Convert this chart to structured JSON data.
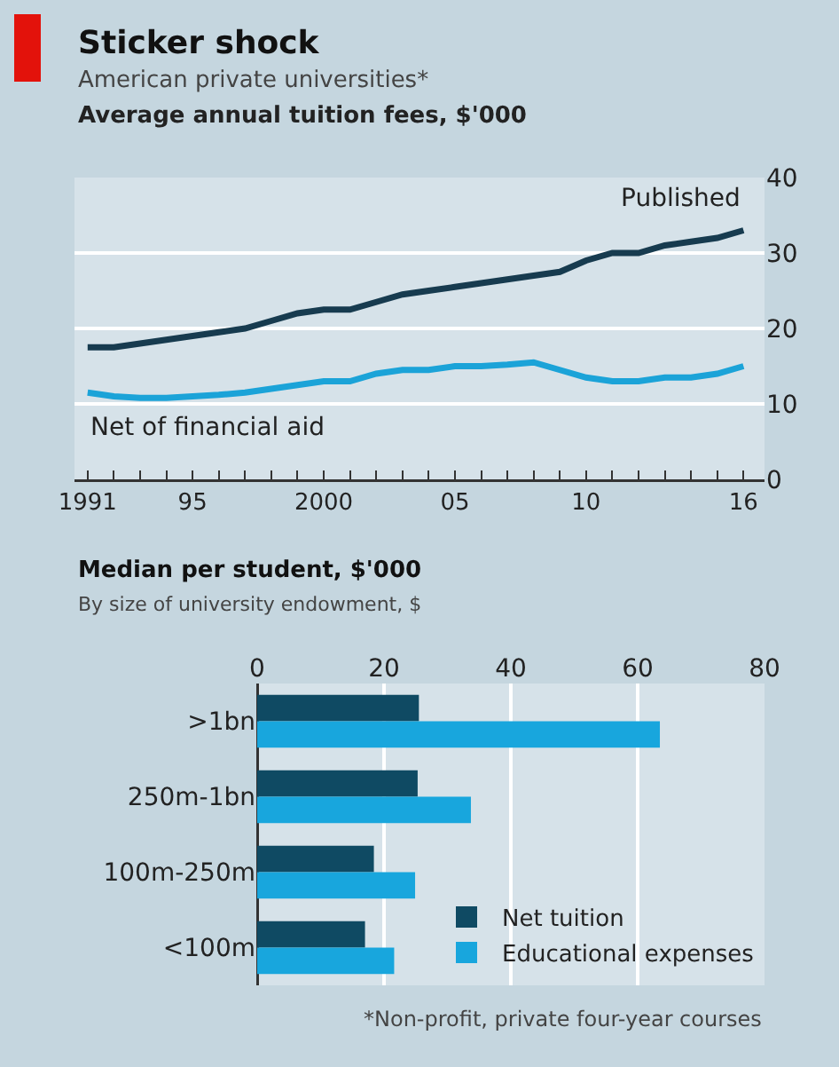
{
  "chart_data": [
    {
      "type": "line",
      "title": "Sticker shock",
      "subtitle": "American private universities*",
      "ylabel": "Average annual tuition fees, $'000",
      "x": [
        1991,
        1992,
        1993,
        1994,
        1995,
        1996,
        1997,
        1998,
        1999,
        2000,
        2001,
        2002,
        2003,
        2004,
        2005,
        2006,
        2007,
        2008,
        2009,
        2010,
        2011,
        2012,
        2013,
        2014,
        2015,
        2016
      ],
      "series": [
        {
          "name": "Published",
          "color": "#173b4f",
          "values": [
            17.5,
            17.5,
            18,
            18.5,
            19,
            19.5,
            20,
            21,
            22,
            22.5,
            22.5,
            23.5,
            24.5,
            25,
            25.5,
            26,
            26.5,
            27,
            27.5,
            29,
            30,
            30,
            31,
            31.5,
            32,
            33
          ]
        },
        {
          "name": "Net of financial aid",
          "color": "#1ba3d8",
          "values": [
            11.5,
            11,
            10.8,
            10.8,
            11,
            11.2,
            11.5,
            12,
            12.5,
            13,
            13,
            14,
            14.5,
            14.5,
            15,
            15,
            15.2,
            15.5,
            14.5,
            13.5,
            13,
            13,
            13.5,
            13.5,
            14,
            15
          ]
        }
      ],
      "xlim": [
        1990.5,
        2016.8
      ],
      "xticks": [
        {
          "value": 1991,
          "label": "1991"
        },
        {
          "value": 1992,
          "label": null
        },
        {
          "value": 1993,
          "label": null
        },
        {
          "value": 1994,
          "label": null
        },
        {
          "value": 1995,
          "label": "95"
        },
        {
          "value": 1996,
          "label": null
        },
        {
          "value": 1997,
          "label": null
        },
        {
          "value": 1998,
          "label": null
        },
        {
          "value": 1999,
          "label": null
        },
        {
          "value": 2000,
          "label": "2000"
        },
        {
          "value": 2001,
          "label": null
        },
        {
          "value": 2002,
          "label": null
        },
        {
          "value": 2003,
          "label": null
        },
        {
          "value": 2004,
          "label": null
        },
        {
          "value": 2005,
          "label": "05"
        },
        {
          "value": 2006,
          "label": null
        },
        {
          "value": 2007,
          "label": null
        },
        {
          "value": 2008,
          "label": null
        },
        {
          "value": 2009,
          "label": null
        },
        {
          "value": 2010,
          "label": "10"
        },
        {
          "value": 2011,
          "label": null
        },
        {
          "value": 2012,
          "label": null
        },
        {
          "value": 2013,
          "label": null
        },
        {
          "value": 2014,
          "label": null
        },
        {
          "value": 2015,
          "label": null
        },
        {
          "value": 2016,
          "label": "16"
        }
      ],
      "ylim": [
        0,
        40
      ],
      "yticks": [
        0,
        10,
        20,
        30,
        40
      ],
      "grid": "y",
      "legend": false
    },
    {
      "type": "bar",
      "orientation": "horizontal",
      "title": "Median per student, $'000",
      "subtitle": "By size of university endowment, $",
      "categories": [
        ">1bn",
        "250m-1bn",
        "100m-250m",
        "<100m"
      ],
      "series": [
        {
          "name": "Net tuition",
          "color": "#0f4a63",
          "values": [
            25.5,
            25.3,
            18.4,
            17
          ]
        },
        {
          "name": "Educational expenses",
          "color": "#18a6dd",
          "values": [
            63.5,
            33.7,
            24.9,
            21.6
          ]
        }
      ],
      "xlim": [
        0,
        80
      ],
      "xticks": [
        0,
        20,
        40,
        60,
        80
      ],
      "grid": "x",
      "legend": "bottom right",
      "annotations": [
        "*Non-profit, private four-year courses"
      ]
    }
  ]
}
